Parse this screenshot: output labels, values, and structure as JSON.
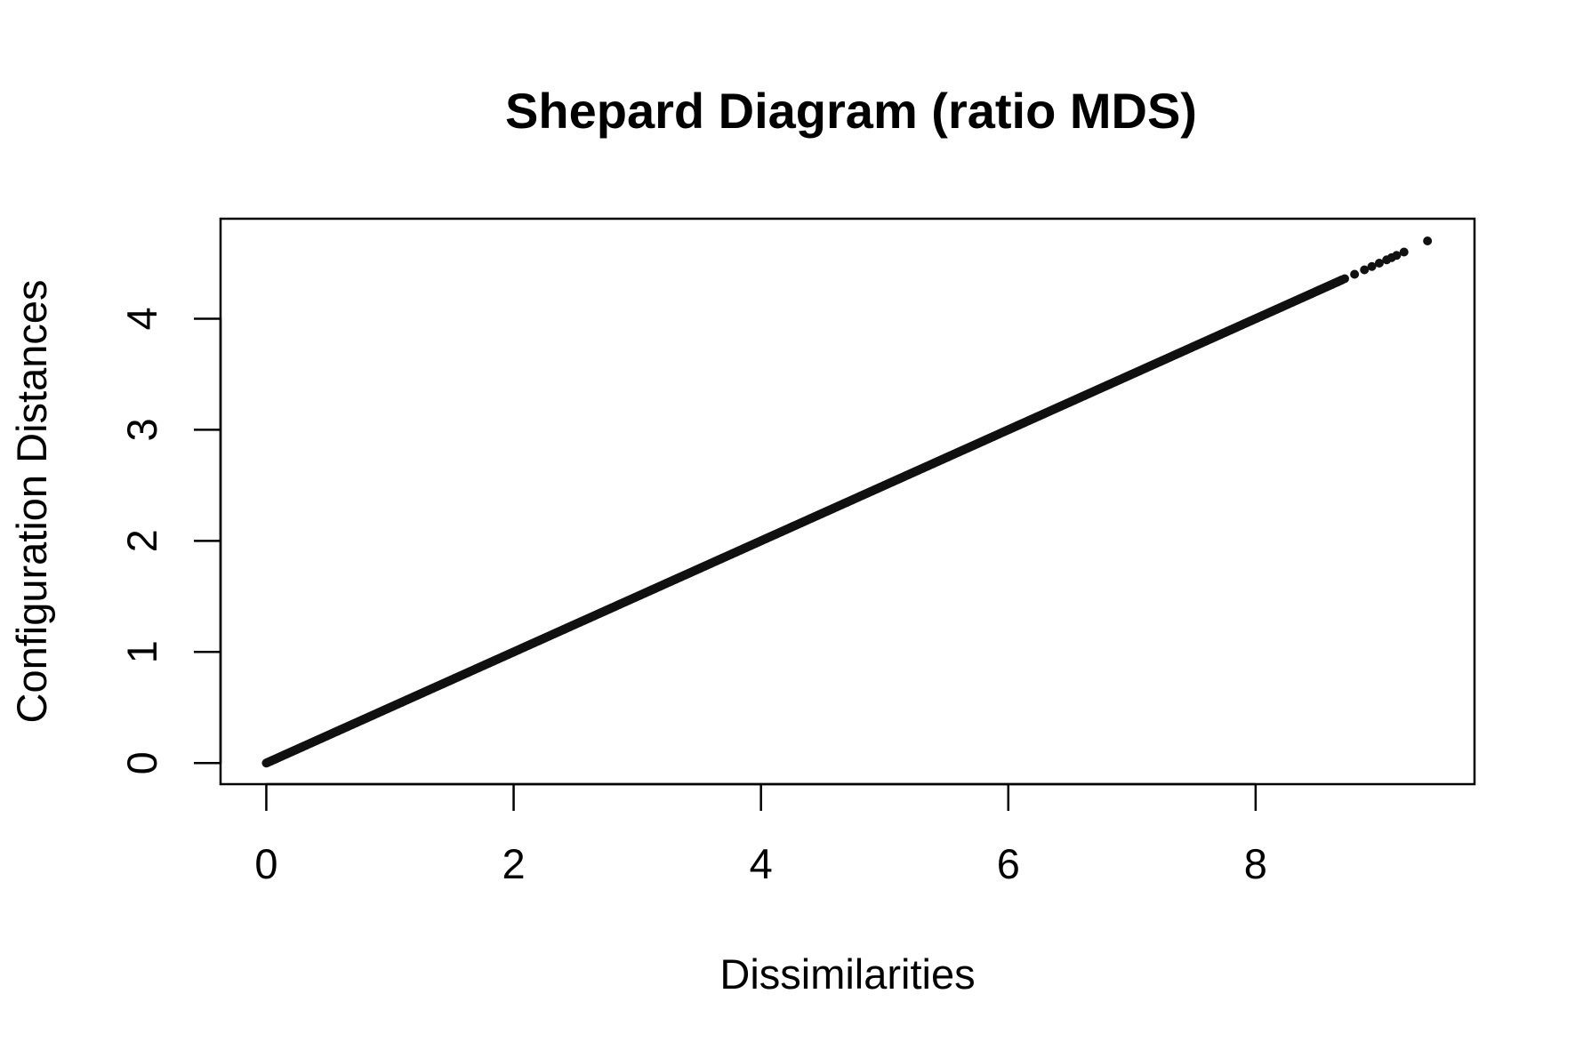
{
  "chart_data": {
    "type": "scatter",
    "title": "Shepard Diagram (ratio MDS)",
    "xlabel": "Dissimilarities",
    "ylabel": "Configuration Distances",
    "xlim": [
      -0.37,
      9.77
    ],
    "ylim": [
      -0.19,
      4.9
    ],
    "x_ticks": [
      0,
      2,
      4,
      6,
      8
    ],
    "y_ticks": [
      0,
      1,
      2,
      3,
      4
    ],
    "x_tick_labels": [
      "0",
      "2",
      "4",
      "6",
      "8"
    ],
    "y_tick_labels": [
      "0",
      "1",
      "2",
      "3",
      "4"
    ],
    "grid": false,
    "point_color": "#111111",
    "slope": 0.5,
    "dense_range": [
      0,
      8.7
    ],
    "sparse_points": [
      {
        "x": 8.72,
        "y": 4.36
      },
      {
        "x": 8.8,
        "y": 4.4
      },
      {
        "x": 8.88,
        "y": 4.44
      },
      {
        "x": 8.94,
        "y": 4.47
      },
      {
        "x": 9.0,
        "y": 4.5
      },
      {
        "x": 9.06,
        "y": 4.53
      },
      {
        "x": 9.1,
        "y": 4.55
      },
      {
        "x": 9.14,
        "y": 4.57
      },
      {
        "x": 9.2,
        "y": 4.6
      },
      {
        "x": 9.39,
        "y": 4.7
      }
    ]
  }
}
